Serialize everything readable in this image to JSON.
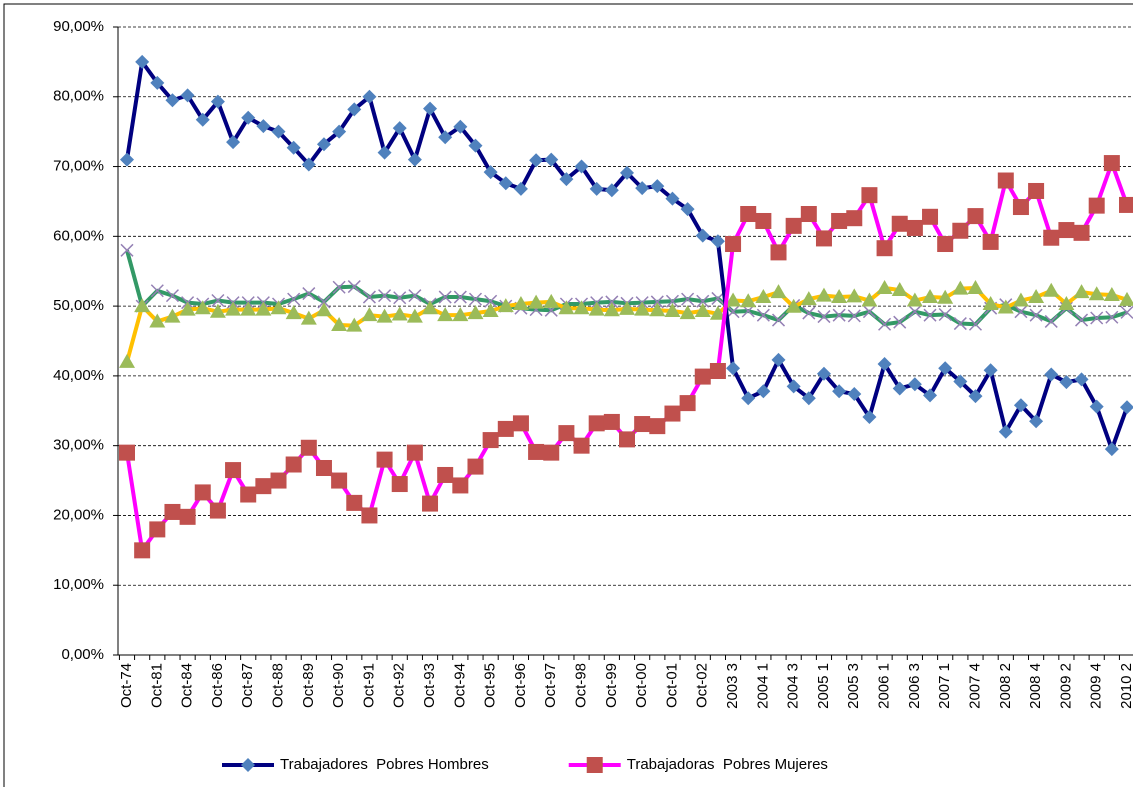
{
  "chart_data": {
    "type": "line",
    "categories": [
      "Oct-74",
      null,
      "Oct-81",
      null,
      "Oct-84",
      null,
      "Oct-86",
      null,
      "Oct-87",
      null,
      "Oct-88",
      null,
      "Oct-89",
      null,
      "Oct-90",
      null,
      "Oct-91",
      null,
      "Oct-92",
      null,
      "Oct-93",
      null,
      "Oct-94",
      null,
      "Oct-95",
      null,
      "Oct-96",
      null,
      "Oct-97",
      null,
      "Oct-98",
      null,
      "Oct-99",
      null,
      "Oct-00",
      null,
      "Oct-01",
      null,
      "Oct-02",
      null,
      "2003 3",
      null,
      "2004 1",
      null,
      "2004 3",
      null,
      "2005 1",
      null,
      "2005 3",
      null,
      "2006 1",
      null,
      "2006 3",
      null,
      "2007 1",
      null,
      "2007 4",
      null,
      "2008 2",
      null,
      "2008 4",
      null,
      "2009 2",
      null,
      "2009 4",
      null,
      "2010 2"
    ],
    "series": [
      {
        "name": "Trabajadores  Pobres Hombres",
        "color": "#000080",
        "marker": "diamond",
        "marker_color": "#4f81bd",
        "values": [
          71,
          85,
          82,
          79.5,
          80.2,
          76.7,
          79.3,
          73.5,
          77,
          75.8,
          75,
          72.7,
          70.3,
          73.2,
          75,
          78.2,
          80,
          72,
          75.5,
          71,
          78.3,
          74.2,
          75.7,
          73,
          69.2,
          67.6,
          66.8,
          70.9,
          71,
          68.2,
          70,
          66.8,
          66.6,
          69.1,
          66.9,
          67.2,
          65.4,
          63.9,
          60.1,
          59.3,
          41.1,
          36.8,
          37.8,
          42.3,
          38.5,
          36.8,
          40.3,
          37.8,
          37.4,
          34.1,
          41.7,
          38.2,
          38.8,
          37.2,
          41.1,
          39.2,
          37.1,
          40.8,
          32,
          35.8,
          33.5,
          40.2,
          39.1,
          39.5,
          35.6,
          29.5,
          35.5
        ]
      },
      {
        "name": "Trabajadoras  Pobres Mujeres",
        "color": "#ff00ff",
        "marker": "square",
        "marker_color": "#c0504d",
        "values": [
          29,
          15,
          18,
          20.5,
          19.8,
          23.3,
          20.7,
          26.5,
          23,
          24.2,
          25,
          27.3,
          29.7,
          26.8,
          25,
          21.8,
          20,
          28,
          24.5,
          29,
          21.7,
          25.8,
          24.3,
          27,
          30.8,
          32.4,
          33.2,
          29.1,
          29,
          31.8,
          30,
          33.2,
          33.4,
          30.9,
          33.1,
          32.8,
          34.6,
          36.1,
          39.9,
          40.7,
          58.9,
          63.2,
          62.2,
          57.7,
          61.5,
          63.2,
          59.7,
          62.2,
          62.6,
          65.9,
          58.3,
          61.8,
          61.2,
          62.8,
          58.9,
          60.8,
          62.9,
          59.2,
          68,
          64.2,
          66.5,
          59.8,
          60.9,
          60.5,
          64.4,
          70.5,
          64.5
        ]
      },
      {
        "color": "#ffc000",
        "marker": "triangle",
        "marker_color": "#9bbb59",
        "values": [
          42,
          50,
          47.8,
          48.5,
          49.5,
          49.7,
          49.2,
          49.5,
          49.5,
          49.5,
          49.7,
          49,
          48.2,
          49.4,
          47.3,
          47.2,
          48.7,
          48.5,
          48.8,
          48.5,
          49.7,
          48.7,
          48.7,
          49,
          49.3,
          50,
          50.3,
          50.5,
          50.6,
          49.7,
          49.7,
          49.5,
          49.4,
          49.6,
          49.5,
          49.4,
          49.3,
          49,
          49.3,
          48.9,
          50.8,
          50.7,
          51.3,
          52,
          49.9,
          51,
          51.5,
          51.3,
          51.4,
          50.8,
          52.6,
          52.3,
          50.8,
          51.3,
          51.2,
          52.5,
          52.6,
          50.3,
          49.8,
          50.8,
          51.3,
          52.2,
          50.3,
          52,
          51.7,
          51.6,
          50.9
        ]
      },
      {
        "color": "#339966",
        "marker": "x",
        "marker_color": "#9480b4",
        "values": [
          58,
          50,
          52.2,
          51.5,
          50.5,
          50.3,
          50.8,
          50.5,
          50.5,
          50.5,
          50.3,
          51,
          51.8,
          50.6,
          52.7,
          52.8,
          51.3,
          51.5,
          51.2,
          51.5,
          50.3,
          51.3,
          51.3,
          51,
          50.7,
          50,
          49.7,
          49.5,
          49.4,
          50.3,
          50.3,
          50.5,
          50.6,
          50.4,
          50.5,
          50.6,
          50.7,
          51,
          50.7,
          51.1,
          49.2,
          49.3,
          48.7,
          48,
          50.1,
          49,
          48.5,
          48.7,
          48.6,
          49.2,
          47.4,
          47.7,
          49.2,
          48.7,
          48.8,
          47.5,
          47.4,
          49.7,
          50.2,
          49.2,
          48.7,
          47.8,
          49.7,
          48,
          48.3,
          48.4,
          49.1
        ]
      }
    ],
    "ylim": [
      0,
      90
    ],
    "yticks": [
      {
        "value": 0,
        "label": "0,00%"
      },
      {
        "value": 10,
        "label": "10,00%"
      },
      {
        "value": 20,
        "label": "20,00%"
      },
      {
        "value": 30,
        "label": "30,00%"
      },
      {
        "value": 40,
        "label": "40,00%"
      },
      {
        "value": 50,
        "label": "50,00%"
      },
      {
        "value": 60,
        "label": "60,00%"
      },
      {
        "value": 70,
        "label": "70,00%"
      },
      {
        "value": 80,
        "label": "80,00%"
      },
      {
        "value": 90,
        "label": "90,00%"
      }
    ],
    "grid": true,
    "legend": "bottom"
  }
}
